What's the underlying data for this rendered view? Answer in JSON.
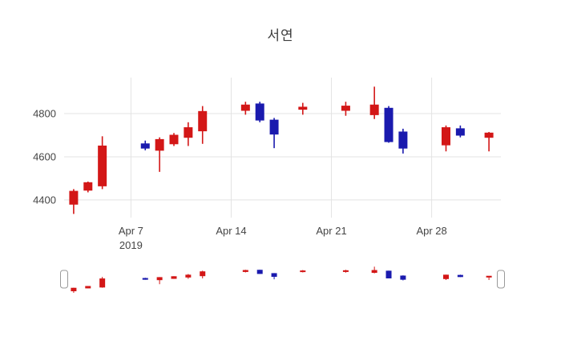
{
  "title": "서연",
  "chart_data": {
    "type": "candlestick",
    "title": "서연",
    "xlabel": "",
    "ylabel": "",
    "grid": true,
    "legend": "none",
    "rangeslider": true,
    "increasing_color": "#d31717",
    "decreasing_color": "#1a1aae",
    "grid_color": "#e3e3e3",
    "tick_color": "#444444",
    "ylim": [
      4318,
      4967
    ],
    "x_range": [
      "2019-04-02T08:00:00Z",
      "2019-05-02T20:00:00Z"
    ],
    "yticks": [
      4400,
      4600,
      4800
    ],
    "xticks": [
      {
        "date": "2019-04-07",
        "label": "Apr 7",
        "sublabel": "2019"
      },
      {
        "date": "2019-04-14",
        "label": "Apr 14",
        "sublabel": ""
      },
      {
        "date": "2019-04-21",
        "label": "Apr 21",
        "sublabel": ""
      },
      {
        "date": "2019-04-28",
        "label": "Apr 28",
        "sublabel": ""
      }
    ],
    "dates": [
      "2019-04-03",
      "2019-04-04",
      "2019-04-05",
      "2019-04-08",
      "2019-04-09",
      "2019-04-10",
      "2019-04-11",
      "2019-04-12",
      "2019-04-15",
      "2019-04-16",
      "2019-04-17",
      "2019-04-19",
      "2019-04-22",
      "2019-04-24",
      "2019-04-25",
      "2019-04-26",
      "2019-04-29",
      "2019-04-30",
      "2019-05-02"
    ],
    "open": [
      4380,
      4445,
      4465,
      4660,
      4630,
      4660,
      4690,
      4720,
      4815,
      4845,
      4770,
      4820,
      4815,
      4795,
      4825,
      4715,
      4655,
      4730,
      4690
    ],
    "high": [
      4450,
      4485,
      4695,
      4675,
      4690,
      4710,
      4760,
      4835,
      4855,
      4855,
      4780,
      4850,
      4855,
      4925,
      4835,
      4730,
      4745,
      4745,
      4715
    ],
    "low": [
      4335,
      4435,
      4450,
      4630,
      4530,
      4650,
      4650,
      4660,
      4795,
      4760,
      4640,
      4795,
      4790,
      4775,
      4665,
      4615,
      4625,
      4690,
      4625
    ],
    "close": [
      4440,
      4480,
      4650,
      4640,
      4680,
      4700,
      4735,
      4810,
      4840,
      4770,
      4705,
      4830,
      4835,
      4840,
      4670,
      4640,
      4735,
      4700,
      4710
    ]
  }
}
